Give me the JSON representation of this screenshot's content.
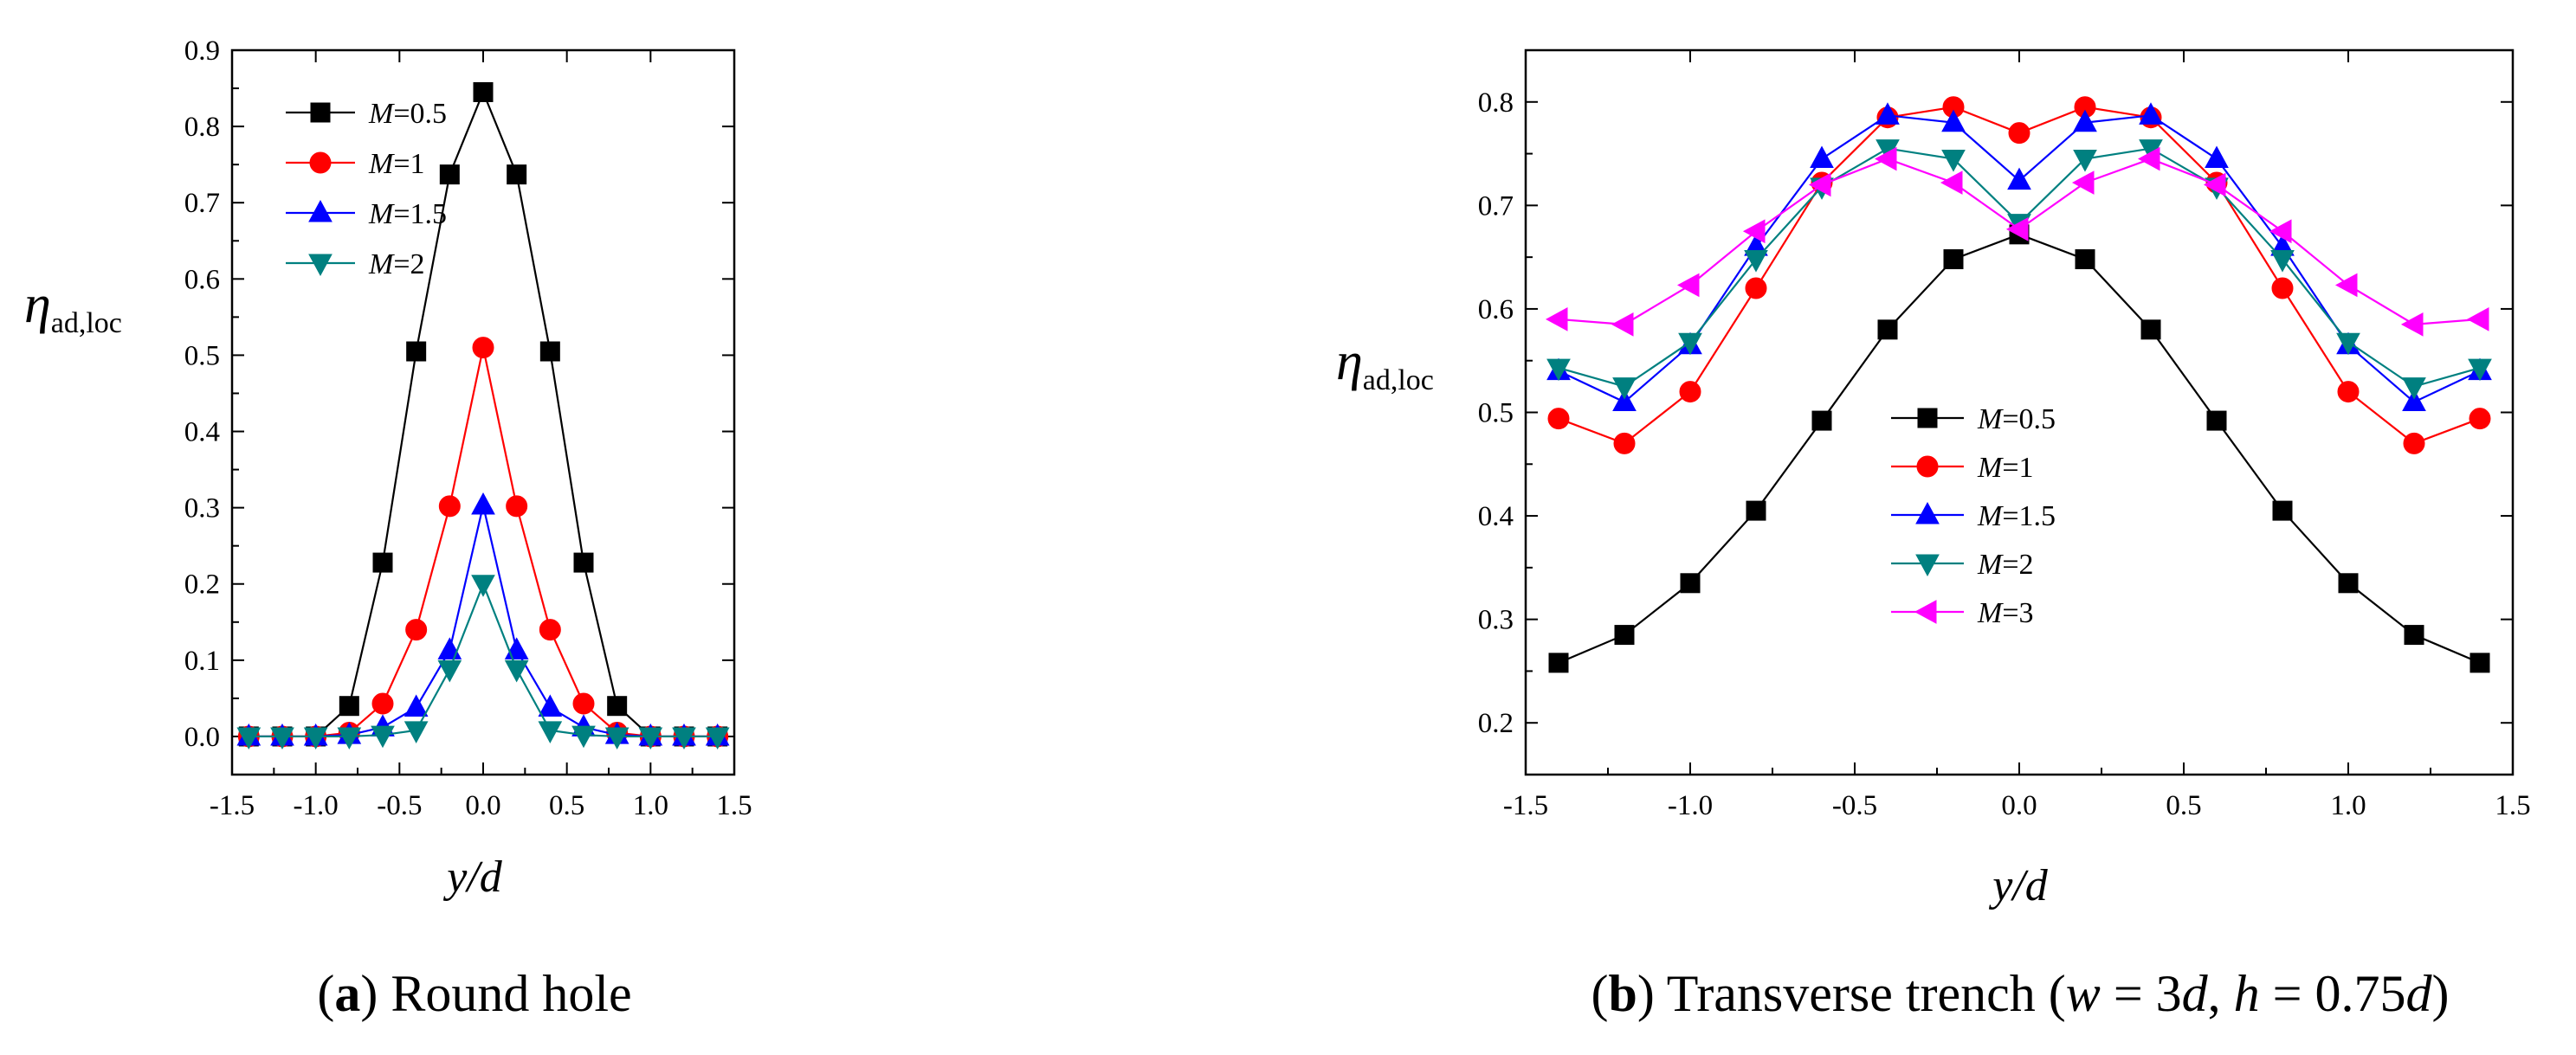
{
  "chart_data": [
    {
      "type": "line",
      "panel_id": "a",
      "caption_letter": "a",
      "caption_text": "Round hole",
      "xlabel": "y/d",
      "ylabel": "η",
      "ylabel_sub": "ad,loc",
      "xlim": [
        -1.5,
        1.5
      ],
      "ylim": [
        -0.05,
        0.9
      ],
      "xticks": [
        "-1.5",
        "-1.0",
        "-0.5",
        "0.0",
        "0.5",
        "1.0",
        "1.5"
      ],
      "yticks": [
        "0.0",
        "0.1",
        "0.2",
        "0.3",
        "0.4",
        "0.5",
        "0.6",
        "0.7",
        "0.8",
        "0.9"
      ],
      "legend_position": "top-left",
      "x": [
        -1.4,
        -1.2,
        -1.0,
        -0.8,
        -0.6,
        -0.4,
        -0.2,
        0.0,
        0.2,
        0.4,
        0.6,
        0.8,
        1.0,
        1.2,
        1.4
      ],
      "series": [
        {
          "name": "M=0.5",
          "var": "M",
          "val": "=0.5",
          "color": "#000000",
          "marker": "square",
          "values": [
            0.0,
            0.0,
            0.0,
            0.04,
            0.228,
            0.505,
            0.737,
            0.845,
            0.737,
            0.505,
            0.228,
            0.04,
            0.0,
            0.0,
            0.0
          ]
        },
        {
          "name": "M=1",
          "var": "M",
          "val": "=1",
          "color": "#ff0000",
          "marker": "circle",
          "values": [
            0.0,
            0.0,
            0.0,
            0.005,
            0.043,
            0.14,
            0.302,
            0.51,
            0.302,
            0.14,
            0.043,
            0.005,
            0.0,
            0.0,
            0.0
          ]
        },
        {
          "name": "M=1.5",
          "var": "M",
          "val": "=1.5",
          "color": "#0000ff",
          "marker": "triangle-up",
          "values": [
            0.0,
            0.0,
            0.0,
            0.002,
            0.012,
            0.038,
            0.113,
            0.303,
            0.113,
            0.038,
            0.012,
            0.002,
            0.0,
            0.0,
            0.0
          ]
        },
        {
          "name": "M=2",
          "var": "M",
          "val": "=2",
          "color": "#008080",
          "marker": "triangle-down",
          "values": [
            0.0,
            0.0,
            0.0,
            0.0,
            0.002,
            0.008,
            0.088,
            0.2,
            0.088,
            0.008,
            0.002,
            0.0,
            0.0,
            0.0,
            0.0
          ]
        }
      ]
    },
    {
      "type": "line",
      "panel_id": "b",
      "caption_letter": "b",
      "caption_parts": [
        {
          "t": "Transverse trench (",
          "i": false
        },
        {
          "t": "w",
          "i": true
        },
        {
          "t": " = 3",
          "i": false
        },
        {
          "t": "d",
          "i": true
        },
        {
          "t": ", ",
          "i": false
        },
        {
          "t": "h",
          "i": true
        },
        {
          "t": " = 0.75",
          "i": false
        },
        {
          "t": "d",
          "i": true
        },
        {
          "t": ")",
          "i": false
        }
      ],
      "xlabel": "y/d",
      "ylabel": "η",
      "ylabel_sub": "ad,loc",
      "xlim": [
        -1.5,
        1.5
      ],
      "ylim": [
        0.15,
        0.85
      ],
      "xticks": [
        "-1.5",
        "-1.0",
        "-0.5",
        "0.0",
        "0.5",
        "1.0",
        "1.5"
      ],
      "yticks": [
        "0.2",
        "0.3",
        "0.4",
        "0.5",
        "0.6",
        "0.7",
        "0.8"
      ],
      "legend_position": "center",
      "x": [
        -1.4,
        -1.2,
        -1.0,
        -0.8,
        -0.6,
        -0.4,
        -0.2,
        0.0,
        0.2,
        0.4,
        0.6,
        0.8,
        1.0,
        1.2,
        1.4
      ],
      "series": [
        {
          "name": "M=0.5",
          "var": "M",
          "val": "=0.5",
          "color": "#000000",
          "marker": "square",
          "values": [
            0.258,
            0.285,
            0.335,
            0.405,
            0.492,
            0.58,
            0.648,
            0.672,
            0.648,
            0.58,
            0.492,
            0.405,
            0.335,
            0.285,
            0.258
          ]
        },
        {
          "name": "M=1",
          "var": "M",
          "val": "=1",
          "color": "#ff0000",
          "marker": "circle",
          "values": [
            0.494,
            0.47,
            0.52,
            0.62,
            0.722,
            0.785,
            0.795,
            0.77,
            0.795,
            0.785,
            0.722,
            0.62,
            0.52,
            0.47,
            0.494
          ]
        },
        {
          "name": "M=1.5",
          "var": "M",
          "val": "=1.5",
          "color": "#0000ff",
          "marker": "triangle-up",
          "values": [
            0.54,
            0.51,
            0.565,
            0.66,
            0.745,
            0.787,
            0.78,
            0.724,
            0.78,
            0.787,
            0.745,
            0.66,
            0.565,
            0.51,
            0.54
          ]
        },
        {
          "name": "M=2",
          "var": "M",
          "val": "=2",
          "color": "#008080",
          "marker": "triangle-down",
          "values": [
            0.543,
            0.525,
            0.568,
            0.648,
            0.718,
            0.755,
            0.745,
            0.683,
            0.745,
            0.755,
            0.718,
            0.648,
            0.568,
            0.525,
            0.543
          ]
        },
        {
          "name": "M=3",
          "var": "M",
          "val": "=3",
          "color": "#ff00ff",
          "marker": "triangle-left",
          "values": [
            0.59,
            0.585,
            0.623,
            0.675,
            0.72,
            0.745,
            0.722,
            0.677,
            0.722,
            0.745,
            0.72,
            0.675,
            0.623,
            0.585,
            0.59
          ]
        }
      ]
    }
  ]
}
